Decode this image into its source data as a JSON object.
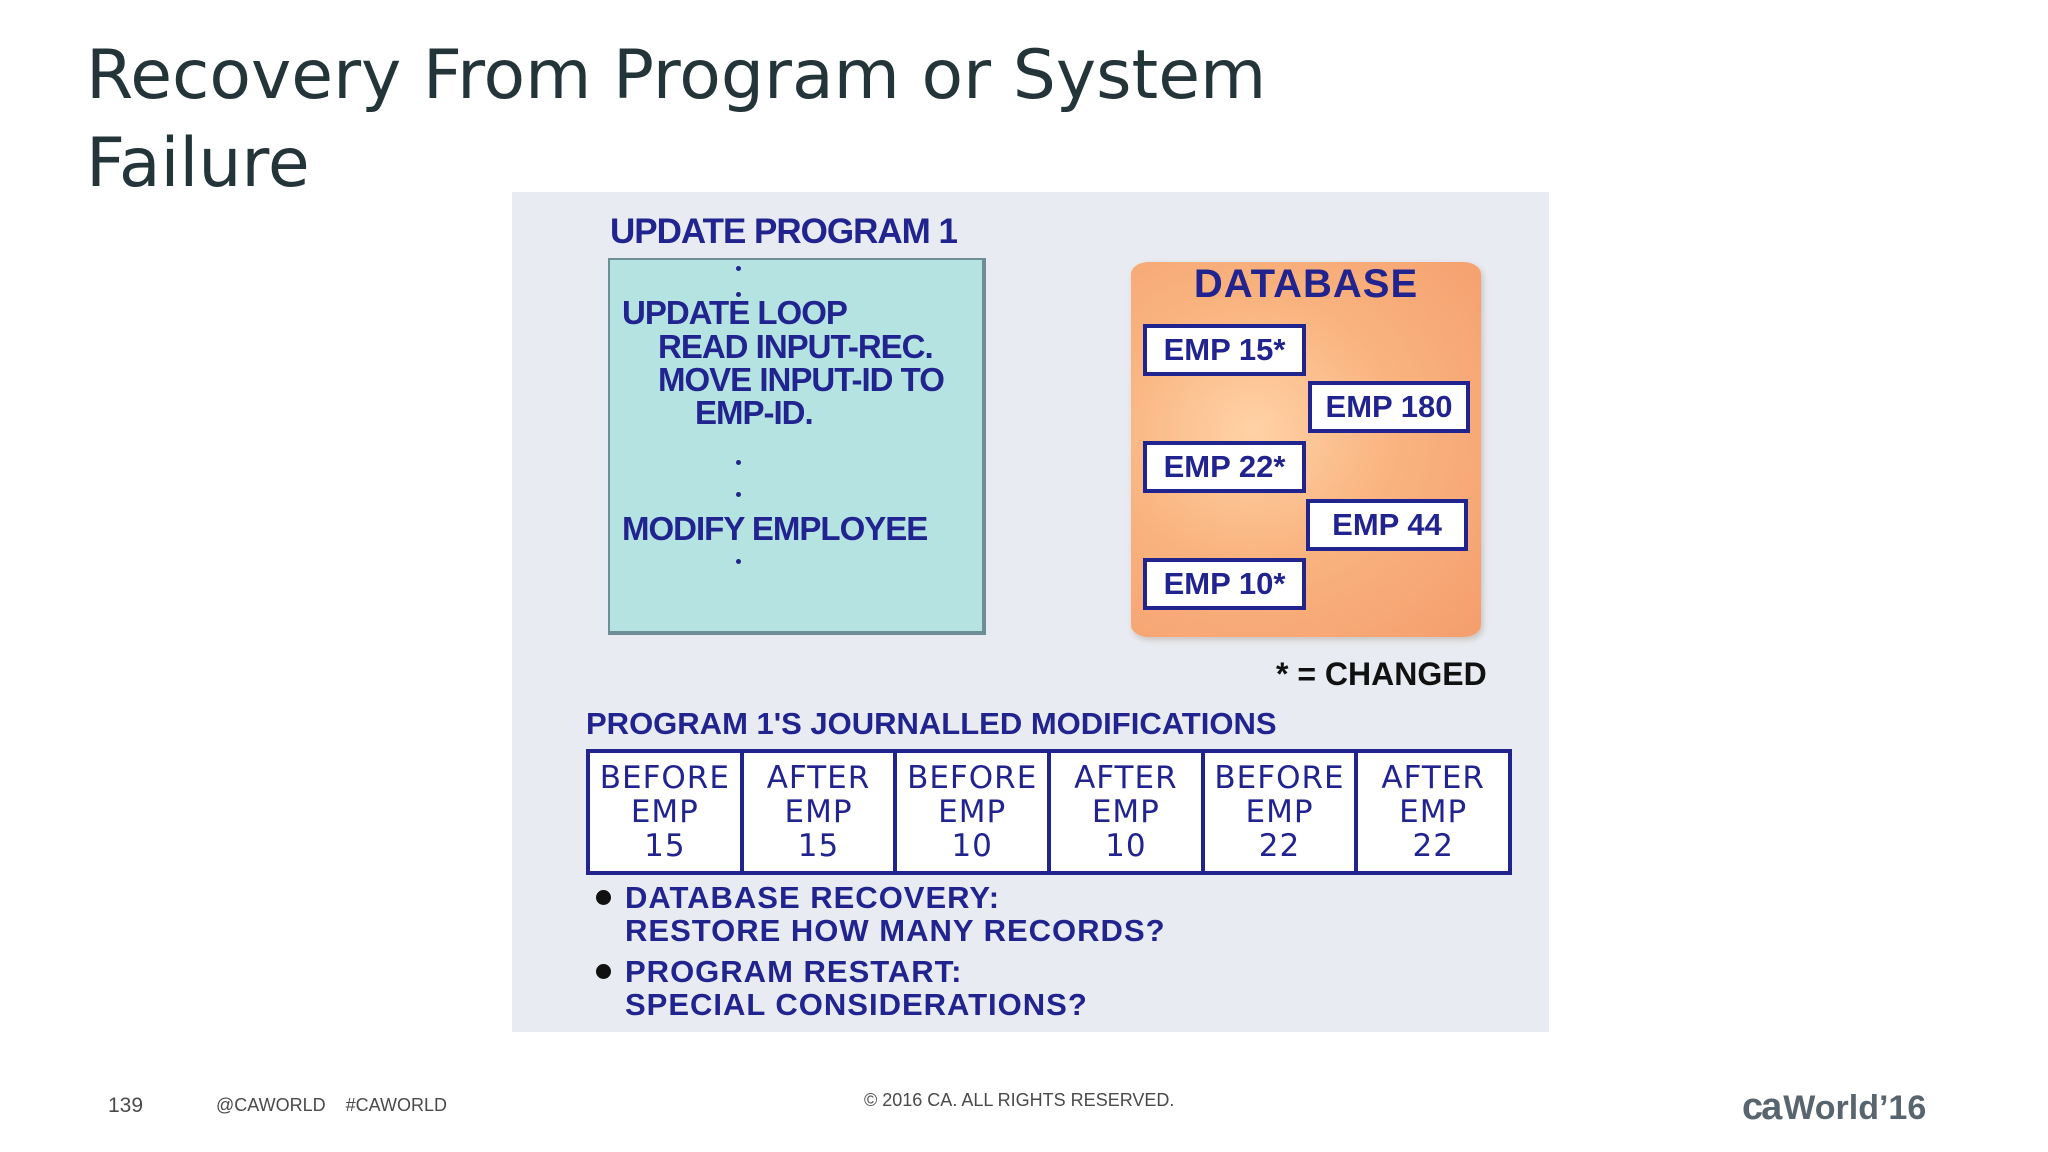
{
  "slide": {
    "title": "Recovery From Program or System Failure",
    "page_number": "139",
    "social": "@CAWORLD    #CAWORLD",
    "copyright": "© 2016 CA. ALL RIGHTS RESERVED.",
    "logo_ca": "ca",
    "logo_world": "World",
    "logo_year": "’16"
  },
  "diagram": {
    "program_title": "UPDATE PROGRAM 1",
    "code_lines": [
      "UPDATE LOOP",
      "READ INPUT-REC.",
      "MOVE INPUT-ID TO",
      "EMP-ID.",
      "MODIFY EMPLOYEE"
    ],
    "database_label": "DATABASE",
    "records": [
      "EMP 15*",
      "EMP 180",
      "EMP 22*",
      "EMP 44",
      "EMP 10*"
    ],
    "changed_note": "* = CHANGED",
    "journal_title": "PROGRAM 1'S JOURNALLED MODIFICATIONS",
    "journal": [
      {
        "label": "BEFORE",
        "emp": "EMP",
        "num": "15"
      },
      {
        "label": "AFTER",
        "emp": "EMP",
        "num": "15"
      },
      {
        "label": "BEFORE",
        "emp": "EMP",
        "num": "10"
      },
      {
        "label": "AFTER",
        "emp": "EMP",
        "num": "10"
      },
      {
        "label": "BEFORE",
        "emp": "EMP",
        "num": "22"
      },
      {
        "label": "AFTER",
        "emp": "EMP",
        "num": "22"
      }
    ],
    "bullets": [
      {
        "line1": "DATABASE RECOVERY:",
        "line2": "RESTORE HOW MANY RECORDS?"
      },
      {
        "line1": "PROGRAM RESTART:",
        "line2": "SPECIAL CONSIDERATIONS?"
      }
    ]
  },
  "colors": {
    "navy": "#21238f",
    "code_box": "#b4e3e2",
    "database": "#f7a978",
    "panel": "#e8ebf1"
  }
}
